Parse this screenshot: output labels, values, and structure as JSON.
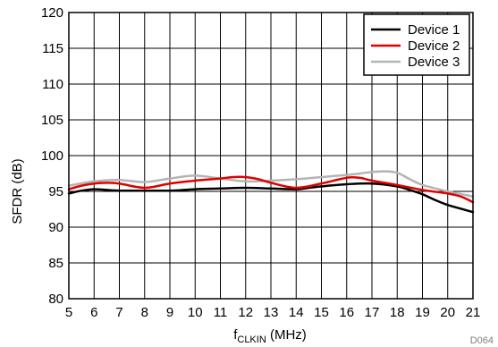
{
  "chart_data": {
    "type": "line",
    "xlabel_main": "f",
    "xlabel_sub": "CLKIN",
    "xlabel_unit": " (MHz)",
    "ylabel": "SFDR (dB)",
    "xlim": [
      5,
      21
    ],
    "ylim": [
      80,
      120
    ],
    "x_ticks": [
      "5",
      "6",
      "7",
      "8",
      "9",
      "10",
      "11",
      "12",
      "13",
      "14",
      "15",
      "16",
      "17",
      "18",
      "19",
      "20",
      "21"
    ],
    "y_ticks": [
      "80",
      "85",
      "90",
      "95",
      "100",
      "105",
      "110",
      "115",
      "120"
    ],
    "grid": true,
    "legend_position": "top-right",
    "figure_id": "D064",
    "series": [
      {
        "name": "Device 1",
        "color": "#000000",
        "x": [
          5,
          5.5,
          6,
          6.5,
          7,
          8,
          9,
          10,
          11,
          12,
          13,
          14,
          14.5,
          15,
          16,
          17,
          18,
          18.5,
          19,
          19.5,
          20,
          20.5,
          21
        ],
        "y": [
          94.7,
          95.1,
          95.3,
          95.2,
          95.1,
          95.1,
          95.1,
          95.3,
          95.4,
          95.5,
          95.4,
          95.3,
          95.5,
          95.7,
          96.0,
          96.1,
          95.7,
          95.2,
          94.6,
          93.8,
          93.1,
          92.6,
          92.1
        ]
      },
      {
        "name": "Device 2",
        "color": "#e00000",
        "x": [
          5,
          5.5,
          6,
          6.5,
          7,
          8,
          9,
          10,
          11,
          11.5,
          12,
          12.5,
          13,
          14,
          15,
          16,
          16.5,
          17,
          18,
          19,
          20,
          20.5,
          21
        ],
        "y": [
          95.3,
          95.8,
          96.1,
          96.2,
          96.1,
          95.5,
          96.1,
          96.5,
          96.8,
          97.0,
          97.0,
          96.7,
          96.2,
          95.5,
          96.1,
          96.9,
          96.9,
          96.5,
          95.9,
          95.2,
          94.7,
          94.3,
          93.5
        ]
      },
      {
        "name": "Device 3",
        "color": "#b4b4b4",
        "x": [
          5,
          6,
          7,
          8,
          9,
          10,
          11,
          12,
          13,
          14,
          15,
          16,
          17,
          17.5,
          18,
          18.5,
          19,
          20,
          21
        ],
        "y": [
          95.8,
          96.4,
          96.6,
          96.3,
          96.8,
          97.2,
          96.8,
          96.4,
          96.5,
          96.7,
          97.0,
          97.3,
          97.7,
          97.8,
          97.6,
          96.7,
          95.9,
          95.0,
          94.3
        ]
      }
    ]
  }
}
